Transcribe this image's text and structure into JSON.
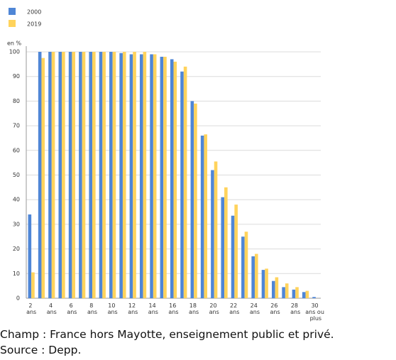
{
  "chart_data": {
    "type": "bar",
    "y_label": "en %",
    "categories": [
      "2 ans",
      null,
      "4 ans",
      null,
      "6 ans",
      null,
      "8 ans",
      null,
      "10 ans",
      null,
      "12 ans",
      null,
      "14 ans",
      null,
      "16 ans",
      null,
      "18 ans",
      null,
      "20 ans",
      null,
      "22 ans",
      null,
      "24 ans",
      null,
      "26 ans",
      null,
      "28 ans",
      null,
      "30 ans ou plus"
    ],
    "series": [
      {
        "name": "2000",
        "color": "#4f86d6",
        "values": [
          34,
          100,
          100,
          100,
          100,
          100,
          100,
          100,
          100,
          99.5,
          99,
          99,
          99,
          98,
          97,
          92,
          80,
          66,
          52,
          41,
          33.5,
          25,
          17,
          11.5,
          7,
          4.5,
          3.5,
          2.5,
          0.5
        ]
      },
      {
        "name": "2019",
        "color": "#ffd35c",
        "values": [
          10.5,
          97.5,
          100,
          100,
          100,
          100,
          100,
          100,
          100,
          100,
          100,
          100,
          99,
          98,
          96,
          94,
          79,
          66.5,
          55.5,
          45,
          38,
          27,
          18,
          12,
          8.5,
          6,
          4.5,
          3,
          0
        ]
      }
    ],
    "ylim": [
      0,
      100
    ],
    "yticks": [
      0,
      10,
      20,
      30,
      40,
      50,
      60,
      70,
      80,
      90,
      100
    ],
    "grid": true,
    "notes": [
      "Champ : France hors Mayotte, enseignement public et privé.",
      "Source : Depp."
    ]
  }
}
